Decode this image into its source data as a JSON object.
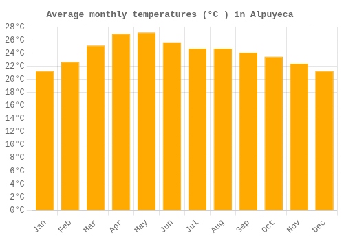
{
  "chart_data": {
    "type": "bar",
    "title": "Average monthly temperatures (°C ) in Alpuyeca",
    "categories": [
      "Jan",
      "Feb",
      "Mar",
      "Apr",
      "May",
      "Jun",
      "Jul",
      "Aug",
      "Sep",
      "Oct",
      "Nov",
      "Dec"
    ],
    "values": [
      21.3,
      22.7,
      25.2,
      27.0,
      27.2,
      25.7,
      24.7,
      24.7,
      24.1,
      23.5,
      22.4,
      21.3
    ],
    "color": "#FFAA00",
    "ylim": [
      0,
      28
    ],
    "yticks": [
      {
        "value": 0,
        "label": "0°C"
      },
      {
        "value": 2,
        "label": "2°C"
      },
      {
        "value": 4,
        "label": "4°C"
      },
      {
        "value": 6,
        "label": "6°C"
      },
      {
        "value": 8,
        "label": "8°C"
      },
      {
        "value": 10,
        "label": "10°C"
      },
      {
        "value": 12,
        "label": "12°C"
      },
      {
        "value": 14,
        "label": "14°C"
      },
      {
        "value": 16,
        "label": "16°C"
      },
      {
        "value": 18,
        "label": "18°C"
      },
      {
        "value": 20,
        "label": "20°C"
      },
      {
        "value": 22,
        "label": "22°C"
      },
      {
        "value": 24,
        "label": "24°C"
      },
      {
        "value": 26,
        "label": "26°C"
      },
      {
        "value": 28,
        "label": "28°C"
      }
    ],
    "grid": true
  }
}
